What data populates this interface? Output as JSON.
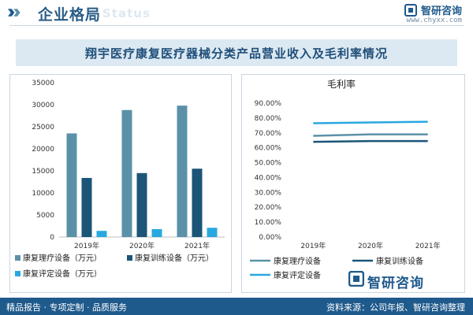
{
  "header": {
    "section_title": "企业格局",
    "section_title_en": "Status",
    "brand_name": "智研咨询",
    "brand_url": "www.chyxx.com"
  },
  "title": "翔宇医疗康复医疗器械分类产品营业收入及毛利率情况",
  "colors": {
    "brand_blue": "#1f5a8c",
    "series_teal": "#5b91a8",
    "series_navy": "#1b5577",
    "series_cyan": "#29a8df"
  },
  "chart_data": [
    {
      "type": "bar",
      "title": "",
      "categories": [
        "2019年",
        "2020年",
        "2021年"
      ],
      "ylim": [
        0,
        35000
      ],
      "yticks": [
        0,
        5000,
        10000,
        15000,
        20000,
        25000,
        30000,
        35000
      ],
      "series": [
        {
          "name": "康复理疗设备（万元）",
          "values": [
            23500,
            28800,
            29800
          ],
          "color": "#5b91a8"
        },
        {
          "name": "康复训练设备（万元）",
          "values": [
            13400,
            14500,
            15500
          ],
          "color": "#1b5577"
        },
        {
          "name": "康复评定设备（万元）",
          "values": [
            1400,
            1800,
            2100
          ],
          "color": "#29a8df"
        }
      ],
      "legend_position": "bottom",
      "grid": false
    },
    {
      "type": "line",
      "title": "毛利率",
      "categories": [
        "2019年",
        "2020年",
        "2021年"
      ],
      "ylim": [
        0,
        0.9
      ],
      "yticks": [
        "0.00%",
        "10.00%",
        "20.00%",
        "30.00%",
        "40.00%",
        "50.00%",
        "60.00%",
        "70.00%",
        "80.00%",
        "90.00%"
      ],
      "series": [
        {
          "name": "康复理疗设备",
          "values": [
            0.68,
            0.69,
            0.69
          ],
          "color": "#5b91a8"
        },
        {
          "name": "康复训练设备",
          "values": [
            0.64,
            0.645,
            0.645
          ],
          "color": "#1b5577"
        },
        {
          "name": "康复评定设备",
          "values": [
            0.765,
            0.77,
            0.775
          ],
          "color": "#29a8df"
        }
      ],
      "legend_position": "bottom",
      "grid": false
    }
  ],
  "footer": {
    "left": "精品报告 · 专项定制 · 品质服务",
    "source": "资料来源：公司年报、智研咨询整理",
    "brand": "智研咨询"
  }
}
